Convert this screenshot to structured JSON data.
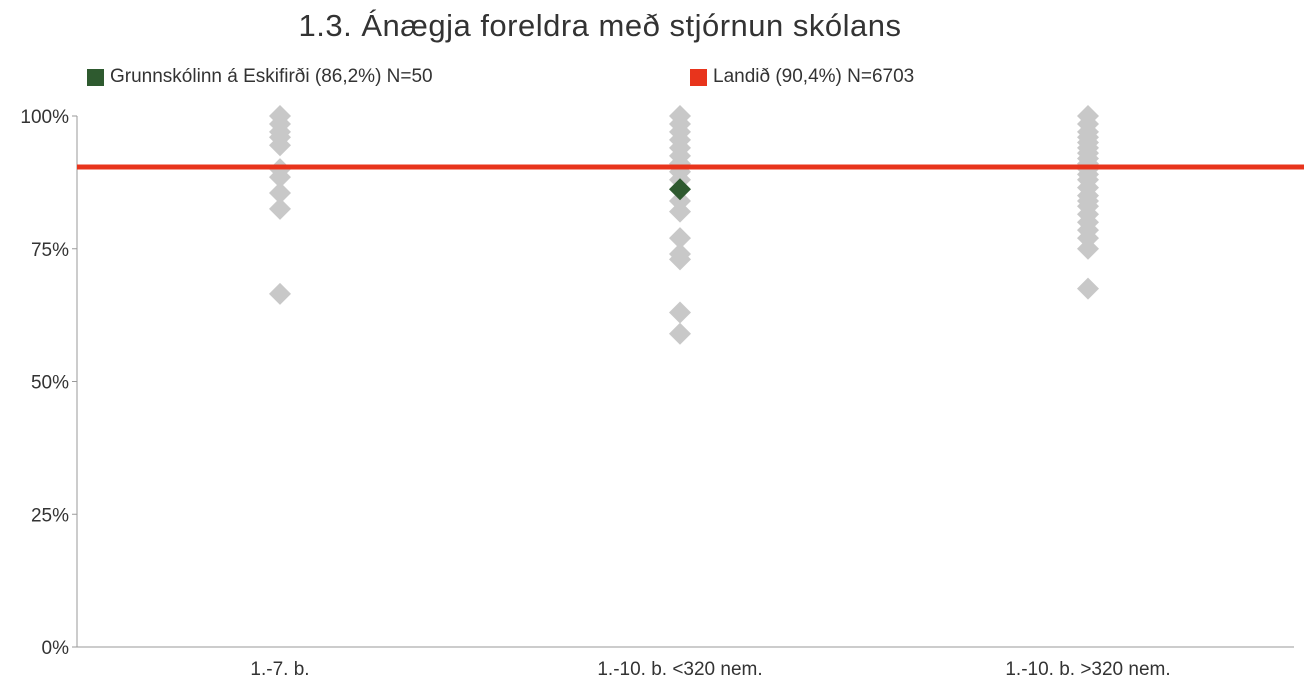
{
  "chart_data": {
    "type": "scatter",
    "title": "1.3. Ánægja foreldra með stjórnun skólans",
    "categories": [
      "1.-7. b.",
      "1.-10. b. <320 nem.",
      "1.-10. b. >320 nem."
    ],
    "yticks": [
      "0%",
      "25%",
      "50%",
      "75%",
      "100%"
    ],
    "ylim": [
      0,
      100
    ],
    "legend_position": "top",
    "series": [
      {
        "name": "Grunnskólinn á Eskifirði (86,2%) N=50",
        "color": "#2e5a2f",
        "marker": "diamond",
        "points": [
          {
            "category": "1.-10. b. <320 nem.",
            "y": 86.2
          }
        ]
      },
      {
        "name": "Landið (90,4%) N=6703",
        "color": "#e8341c",
        "marker": "line",
        "y": 90.4
      },
      {
        "color": "#c8c8c8",
        "marker": "diamond",
        "points": [
          {
            "category": "1.-7. b.",
            "y": 100
          },
          {
            "category": "1.-7. b.",
            "y": 98.5
          },
          {
            "category": "1.-7. b.",
            "y": 97
          },
          {
            "category": "1.-7. b.",
            "y": 96
          },
          {
            "category": "1.-7. b.",
            "y": 94.5
          },
          {
            "category": "1.-7. b.",
            "y": 90
          },
          {
            "category": "1.-7. b.",
            "y": 88.5
          },
          {
            "category": "1.-7. b.",
            "y": 85.5
          },
          {
            "category": "1.-7. b.",
            "y": 82.5
          },
          {
            "category": "1.-7. b.",
            "y": 66.5
          },
          {
            "category": "1.-10. b. <320 nem.",
            "y": 100
          },
          {
            "category": "1.-10. b. <320 nem.",
            "y": 98.5
          },
          {
            "category": "1.-10. b. <320 nem.",
            "y": 97
          },
          {
            "category": "1.-10. b. <320 nem.",
            "y": 95.5
          },
          {
            "category": "1.-10. b. <320 nem.",
            "y": 94
          },
          {
            "category": "1.-10. b. <320 nem.",
            "y": 92.5
          },
          {
            "category": "1.-10. b. <320 nem.",
            "y": 91
          },
          {
            "category": "1.-10. b. <320 nem.",
            "y": 89.5
          },
          {
            "category": "1.-10. b. <320 nem.",
            "y": 88
          },
          {
            "category": "1.-10. b. <320 nem.",
            "y": 84
          },
          {
            "category": "1.-10. b. <320 nem.",
            "y": 82
          },
          {
            "category": "1.-10. b. <320 nem.",
            "y": 77
          },
          {
            "category": "1.-10. b. <320 nem.",
            "y": 74
          },
          {
            "category": "1.-10. b. <320 nem.",
            "y": 73
          },
          {
            "category": "1.-10. b. <320 nem.",
            "y": 63
          },
          {
            "category": "1.-10. b. <320 nem.",
            "y": 59
          },
          {
            "category": "1.-10. b. >320 nem.",
            "y": 100
          },
          {
            "category": "1.-10. b. >320 nem.",
            "y": 98.5
          },
          {
            "category": "1.-10. b. >320 nem.",
            "y": 97
          },
          {
            "category": "1.-10. b. >320 nem.",
            "y": 96
          },
          {
            "category": "1.-10. b. >320 nem.",
            "y": 95
          },
          {
            "category": "1.-10. b. >320 nem.",
            "y": 94
          },
          {
            "category": "1.-10. b. >320 nem.",
            "y": 93
          },
          {
            "category": "1.-10. b. >320 nem.",
            "y": 92
          },
          {
            "category": "1.-10. b. >320 nem.",
            "y": 91
          },
          {
            "category": "1.-10. b. >320 nem.",
            "y": 90
          },
          {
            "category": "1.-10. b. >320 nem.",
            "y": 89
          },
          {
            "category": "1.-10. b. >320 nem.",
            "y": 88
          },
          {
            "category": "1.-10. b. >320 nem.",
            "y": 86.5
          },
          {
            "category": "1.-10. b. >320 nem.",
            "y": 85
          },
          {
            "category": "1.-10. b. >320 nem.",
            "y": 84
          },
          {
            "category": "1.-10. b. >320 nem.",
            "y": 83
          },
          {
            "category": "1.-10. b. >320 nem.",
            "y": 81.5
          },
          {
            "category": "1.-10. b. >320 nem.",
            "y": 80
          },
          {
            "category": "1.-10. b. >320 nem.",
            "y": 78.5
          },
          {
            "category": "1.-10. b. >320 nem.",
            "y": 77
          },
          {
            "category": "1.-10. b. >320 nem.",
            "y": 75
          },
          {
            "category": "1.-10. b. >320 nem.",
            "y": 67.5
          }
        ]
      }
    ]
  }
}
